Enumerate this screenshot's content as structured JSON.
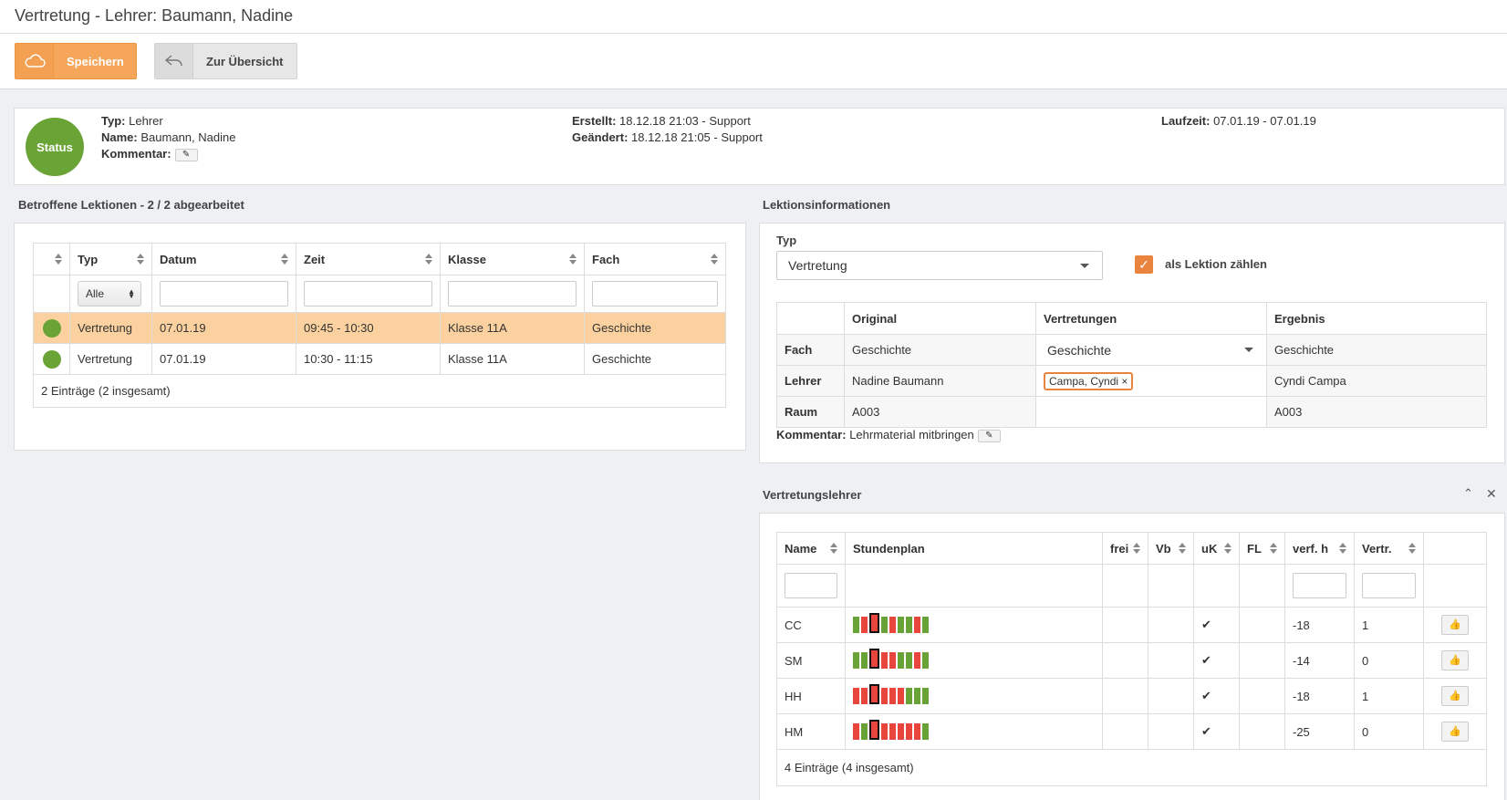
{
  "header": {
    "title": "Vertretung - Lehrer: Baumann, Nadine"
  },
  "toolbar": {
    "save_label": "Speichern",
    "back_label": "Zur Übersicht"
  },
  "info": {
    "status_label": "Status",
    "typ_label": "Typ:",
    "typ_value": "Lehrer",
    "name_label": "Name:",
    "name_value": "Baumann, Nadine",
    "kommentar_label": "Kommentar:",
    "erstellt_label": "Erstellt:",
    "erstellt_value": "18.12.18 21:03 - Support",
    "geaendert_label": "Geändert:",
    "geaendert_value": "18.12.18 21:05 - Support",
    "laufzeit_label": "Laufzeit:",
    "laufzeit_value": "07.01.19 - 07.01.19"
  },
  "lektionen": {
    "title": "Betroffene Lektionen - 2 / 2 abgearbeitet",
    "headers": [
      "Typ",
      "Datum",
      "Zeit",
      "Klasse",
      "Fach"
    ],
    "filter_select": "Alle",
    "rows": [
      [
        "Vertretung",
        "07.01.19",
        "09:45 - 10:30",
        "Klasse 11A",
        "Geschichte"
      ],
      [
        "Vertretung",
        "07.01.19",
        "10:30 - 11:15",
        "Klasse 11A",
        "Geschichte"
      ]
    ],
    "footer": "2 Einträge (2 insgesamt)",
    "highlight_color": "#fbd29f"
  },
  "lektionsinfo": {
    "title": "Lektionsinformationen",
    "typ_label": "Typ",
    "typ_value": "Vertretung",
    "count_label": "als Lektion zählen",
    "headers": [
      "Original",
      "Vertretungen",
      "Ergebnis"
    ],
    "fach": {
      "label": "Fach",
      "original": "Geschichte",
      "vertretung": "Geschichte",
      "ergebnis": "Geschichte"
    },
    "lehrer": {
      "label": "Lehrer",
      "original": "Nadine Baumann",
      "vertretung": "Campa, Cyndi",
      "ergebnis": "Cyndi Campa"
    },
    "raum": {
      "label": "Raum",
      "original": "A003",
      "vertretung": "",
      "ergebnis": "A003"
    },
    "kommentar_label": "Kommentar:",
    "kommentar_value": "Lehrmaterial mitbringen"
  },
  "vertretungslehrer": {
    "title": "Vertretungslehrer",
    "headers": [
      "Name",
      "Stundenplan",
      "frei",
      "Vb",
      "uK",
      "FL",
      "verf. h",
      "Vertr."
    ],
    "rows": [
      {
        "name": "CC",
        "plan": [
          "g",
          "r",
          "c",
          "g",
          "r",
          "g",
          "g",
          "r",
          "g"
        ],
        "uk": "✔",
        "verf": "-18",
        "vertr": "1"
      },
      {
        "name": "SM",
        "plan": [
          "g",
          "g",
          "c",
          "r",
          "r",
          "g",
          "g",
          "r",
          "g"
        ],
        "uk": "✔",
        "verf": "-14",
        "vertr": "0"
      },
      {
        "name": "HH",
        "plan": [
          "r",
          "r",
          "c",
          "r",
          "r",
          "r",
          "g",
          "g",
          "g"
        ],
        "uk": "✔",
        "verf": "-18",
        "vertr": "1"
      },
      {
        "name": "HM",
        "plan": [
          "r",
          "g",
          "c",
          "r",
          "r",
          "r",
          "r",
          "r",
          "g"
        ],
        "uk": "✔",
        "verf": "-25",
        "vertr": "0"
      }
    ],
    "footer": "4 Einträge (4 insgesamt)"
  }
}
